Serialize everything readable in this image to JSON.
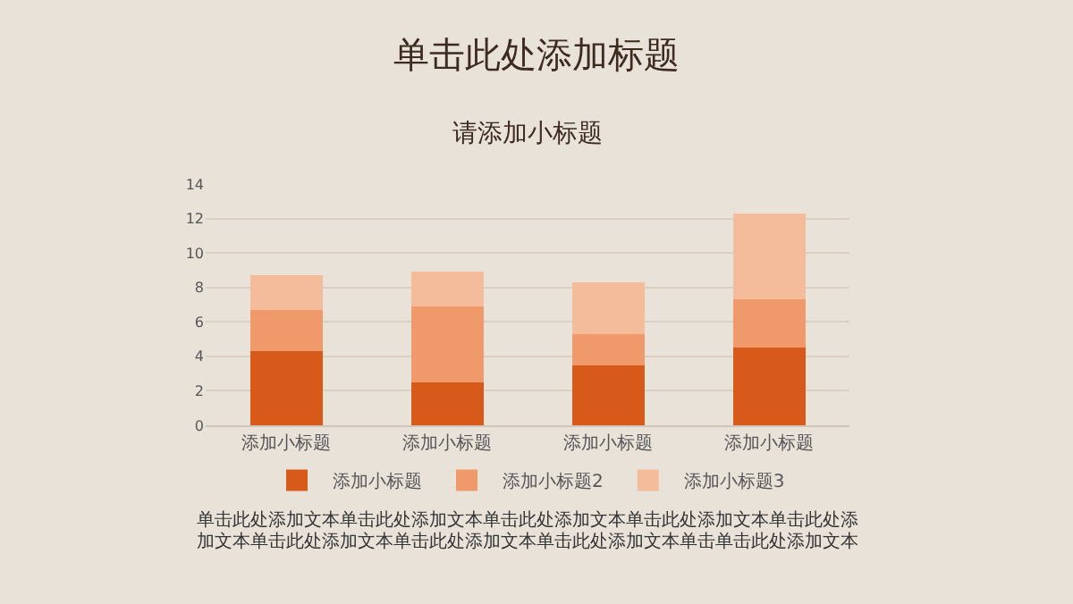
{
  "chart_data": {
    "type": "bar",
    "title": "单击此处添加标题",
    "subtitle": "请添加小标题",
    "categories": [
      "添加小标题",
      "添加小标题",
      "添加小标题",
      "添加小标题"
    ],
    "series": [
      {
        "name": "添加小标题",
        "color": "#d85a1a",
        "values": [
          4.3,
          2.5,
          3.5,
          4.5
        ]
      },
      {
        "name": "添加小标题2",
        "color": "#f09a6c",
        "values": [
          2.4,
          4.4,
          1.8,
          2.8
        ]
      },
      {
        "name": "添加小标题3",
        "color": "#f5bc9c",
        "values": [
          2.0,
          2.0,
          3.0,
          5.0
        ]
      }
    ],
    "stacked": true,
    "ylim": [
      0,
      14
    ],
    "yticks": [
      0,
      2,
      4,
      6,
      8,
      10,
      12,
      14
    ],
    "grid": "y",
    "legend": "bottom",
    "annotations": [
      "单击此处添加文本单击此处添加文本单击此处添加文本单击此处添加文本单击此处添",
      "加文本单击此处添加文本单击此处添加文本单击此处添加文本单击单击此处添加文本"
    ]
  }
}
